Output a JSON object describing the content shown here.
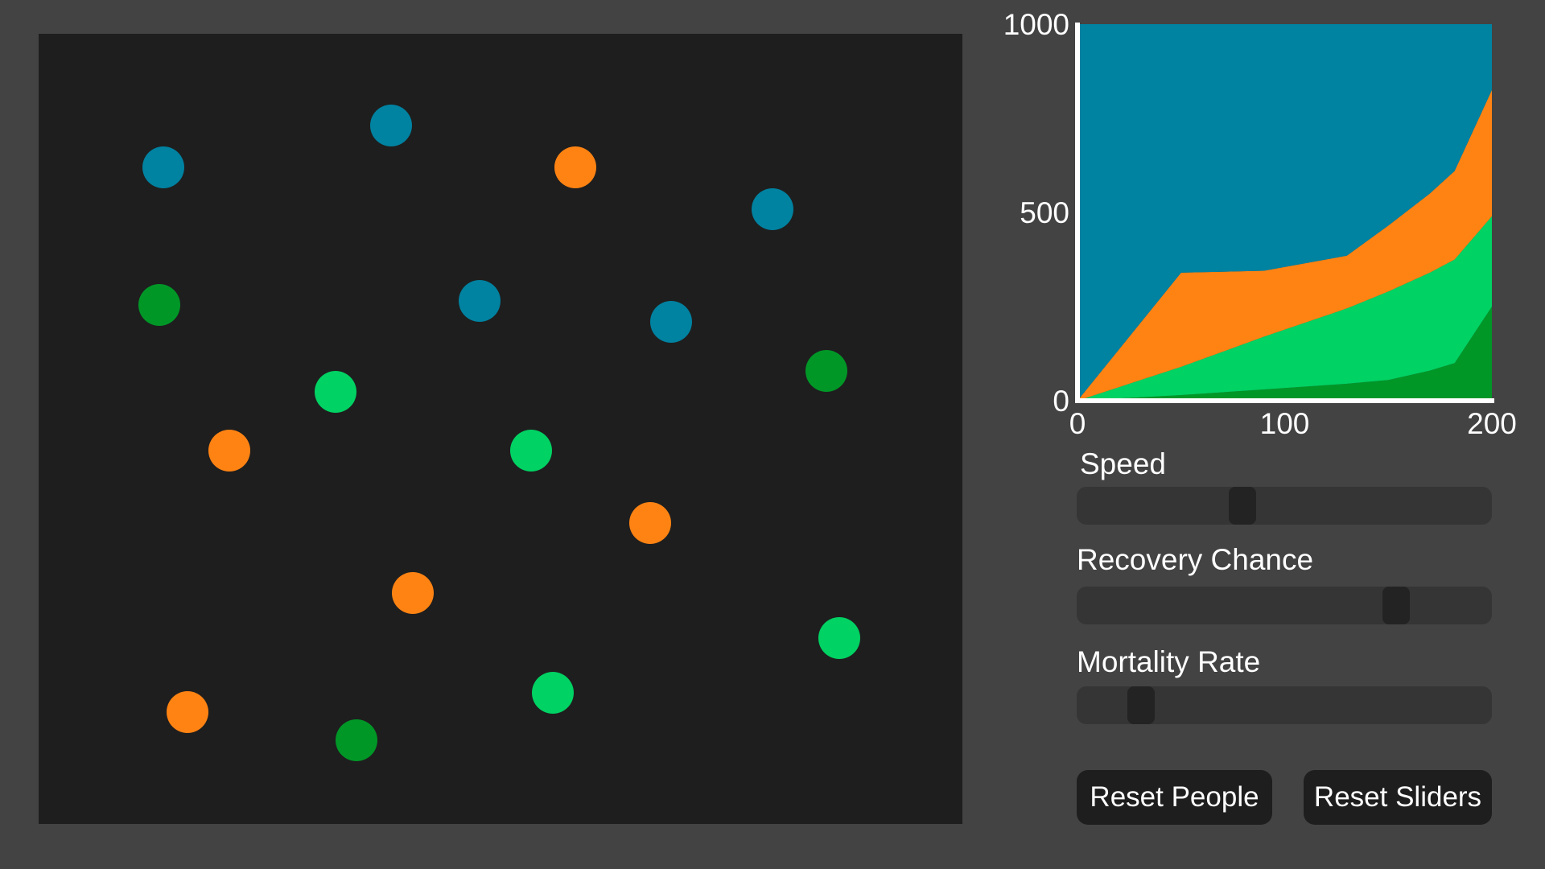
{
  "colors": {
    "background": "#434343",
    "simulation_bg": "#1e1e1e",
    "susceptible": "#0082a1",
    "infected": "#ff8313",
    "recovered": "#00d263",
    "dead": "#009727"
  },
  "simulation": {
    "people": [
      {
        "state": "susceptible"
      },
      {
        "state": "susceptible"
      },
      {
        "state": "infected"
      },
      {
        "state": "susceptible"
      },
      {
        "state": "dead"
      },
      {
        "state": "susceptible"
      },
      {
        "state": "susceptible"
      },
      {
        "state": "dead"
      },
      {
        "state": "recovered"
      },
      {
        "state": "infected"
      },
      {
        "state": "recovered"
      },
      {
        "state": "infected"
      },
      {
        "state": "infected"
      },
      {
        "state": "recovered"
      },
      {
        "state": "infected"
      },
      {
        "state": "recovered"
      },
      {
        "state": "dead"
      }
    ]
  },
  "chart_data": {
    "type": "area",
    "stacked": true,
    "x": [
      0,
      50,
      90,
      130,
      150,
      170,
      182,
      200
    ],
    "series": [
      {
        "name": "dead",
        "color": "#009727",
        "values": [
          0,
          15,
          30,
          45,
          55,
          80,
          100,
          250
        ]
      },
      {
        "name": "recovered",
        "color": "#00d263",
        "values": [
          0,
          75,
          140,
          200,
          235,
          260,
          275,
          240
        ]
      },
      {
        "name": "infected",
        "color": "#ff8313",
        "values": [
          0,
          250,
          175,
          140,
          175,
          210,
          235,
          335
        ]
      },
      {
        "name": "susceptible",
        "color": "#0082a1",
        "values": [
          1000,
          660,
          655,
          615,
          535,
          450,
          390,
          175
        ]
      }
    ],
    "xlim": [
      0,
      200
    ],
    "ylim": [
      0,
      1000
    ],
    "xticks": [
      "0",
      "100",
      "200"
    ],
    "yticks": [
      "0",
      "500",
      "1000"
    ]
  },
  "controls": {
    "sliders": [
      {
        "label": "Speed",
        "value": 0.4
      },
      {
        "label": "Recovery Chance",
        "value": 0.77
      },
      {
        "label": "Mortality Rate",
        "value": 0.155
      }
    ],
    "buttons": {
      "reset_people": "Reset People",
      "reset_sliders": "Reset Sliders"
    }
  }
}
